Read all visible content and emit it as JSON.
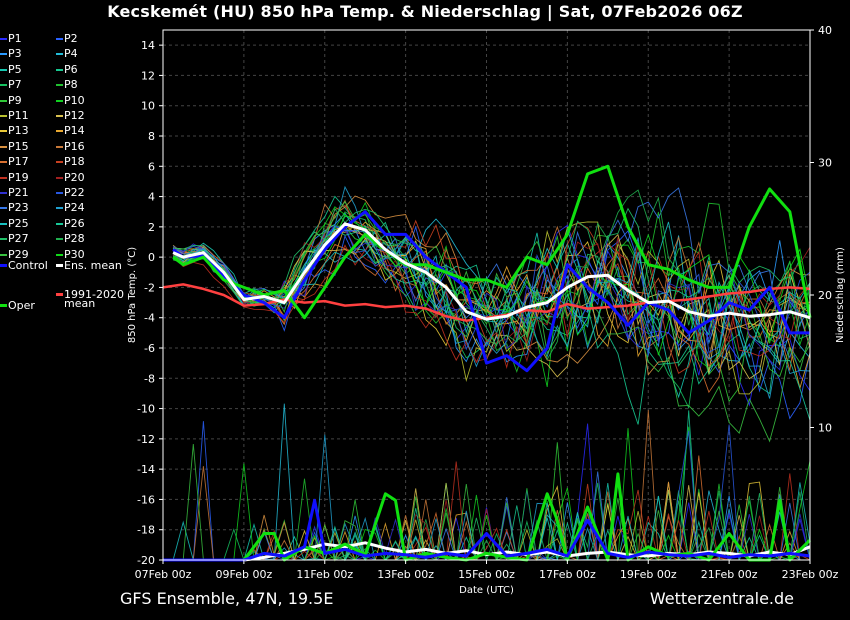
{
  "title": "Kecskemét  (HU)  850 hPa Temp. & Niederschlag | Sat, 07Feb2026 06Z",
  "footer": {
    "left": "GFS Ensemble, 47N, 19.5E",
    "right": "Wetterzentrale.de"
  },
  "legend": {
    "members": [
      "P1",
      "P2",
      "P3",
      "P4",
      "P5",
      "P6",
      "P7",
      "P8",
      "P9",
      "P10",
      "P11",
      "P12",
      "P13",
      "P14",
      "P15",
      "P16",
      "P17",
      "P18",
      "P19",
      "P20",
      "P21",
      "P22",
      "P23",
      "P24",
      "P25",
      "P26",
      "P27",
      "P28",
      "P29",
      "P30"
    ],
    "control": "Control",
    "ens_mean": "Ens. mean",
    "clim_line1": "1991-2020",
    "clim_line2": "mean",
    "oper": "Oper"
  },
  "colors": {
    "control": "#1010ff",
    "ens_mean": "#ffffff",
    "clim": "#ff4040",
    "oper": "#10e010",
    "members": [
      "#2a2aff",
      "#2a62ff",
      "#2a9aff",
      "#22bcd8",
      "#16c8b0",
      "#16c890",
      "#16c060",
      "#20c030",
      "#30c838",
      "#10d020",
      "#b8c030",
      "#d8c050",
      "#e8c838",
      "#e8a830",
      "#d89040",
      "#c87838",
      "#d87030",
      "#c84020",
      "#c03020",
      "#a02020",
      "#3030d0",
      "#2858e0",
      "#3878e8",
      "#20a0d0",
      "#18c0c0",
      "#18c898",
      "#20c068",
      "#20b050",
      "#38c040",
      "#10d818"
    ]
  },
  "axes": {
    "x_label": "Date (UTC)",
    "y_left_label": "850 hPa Temp. (°C)",
    "y_right_label": "Niederschlag (mm)",
    "x_ticks": [
      "07Feb 00z",
      "09Feb 00z",
      "11Feb 00z",
      "13Feb 00z",
      "15Feb 00z",
      "17Feb 00z",
      "19Feb 00z",
      "21Feb 00z",
      "23Feb 00z"
    ],
    "x_range_days": [
      0,
      16
    ],
    "y_left_range": [
      -20,
      15
    ],
    "y_left_ticks": [
      14,
      12,
      10,
      8,
      6,
      4,
      2,
      0,
      -2,
      -4,
      -6,
      -8,
      -10,
      -12,
      -14,
      -16,
      -18,
      -20
    ],
    "y_right_range": [
      0,
      40
    ],
    "y_right_ticks": [
      10,
      20,
      30,
      40
    ],
    "grid": true
  },
  "chart_data": {
    "type": "line",
    "x_unit": "days since 07Feb 00z",
    "series": [
      {
        "name": "Ens. mean",
        "kind": "temp",
        "x": [
          0.25,
          0.5,
          1,
          1.5,
          2,
          2.5,
          3,
          3.5,
          4,
          4.5,
          5,
          5.5,
          6,
          6.5,
          7,
          7.5,
          8,
          8.5,
          9,
          9.5,
          10,
          10.5,
          11,
          11.5,
          12,
          12.5,
          13,
          13.5,
          14,
          14.5,
          15,
          15.5,
          16
        ],
        "y": [
          0.3,
          0,
          0.3,
          -1,
          -2.8,
          -2.6,
          -3,
          -1,
          0.8,
          2.2,
          1.8,
          0.5,
          -0.4,
          -1,
          -2,
          -3.6,
          -4.1,
          -3.9,
          -3.3,
          -3,
          -2,
          -1.3,
          -1.2,
          -2.2,
          -3,
          -2.9,
          -3.6,
          -3.9,
          -3.7,
          -3.9,
          -3.8,
          -3.6,
          -4
        ]
      },
      {
        "name": "Control",
        "kind": "temp",
        "x": [
          0.25,
          0.5,
          1,
          1.5,
          2,
          2.5,
          3,
          3.5,
          4,
          4.5,
          5,
          5.5,
          6,
          6.5,
          7,
          7.5,
          8,
          8.5,
          9,
          9.5,
          10,
          10.5,
          11,
          11.5,
          12,
          12.5,
          13,
          13.5,
          14,
          14.5,
          15,
          15.5,
          16
        ],
        "y": [
          0.5,
          0,
          0.1,
          -1.2,
          -2.5,
          -3,
          -4,
          -1.5,
          0.5,
          2,
          3,
          1.5,
          1.5,
          0,
          -1,
          -2,
          -7,
          -6.5,
          -7.5,
          -6,
          -0.5,
          -2,
          -3,
          -4.5,
          -3,
          -3.5,
          -5,
          -4.2,
          -3,
          -3.5,
          -2,
          -5,
          -5
        ]
      },
      {
        "name": "Oper",
        "kind": "temp",
        "x": [
          0.25,
          0.5,
          1,
          1.5,
          2,
          2.5,
          3,
          3.5,
          4,
          4.5,
          5,
          5.5,
          6,
          6.5,
          7,
          7.5,
          8,
          8.5,
          9,
          9.5,
          10,
          10.5,
          11,
          11.5,
          12,
          12.5,
          13,
          13.5,
          14,
          14.5,
          15,
          15.5,
          16
        ],
        "y": [
          0,
          -0.5,
          0,
          -1.5,
          -2,
          -2.5,
          -2.2,
          -4,
          -2,
          0,
          1.5,
          0.5,
          -0.5,
          -0.5,
          -1,
          -1.5,
          -1.5,
          -2,
          0,
          -0.5,
          1.5,
          5.5,
          6,
          2,
          -0.5,
          -0.8,
          -1.5,
          -2,
          -2,
          2,
          4.5,
          3,
          -4
        ]
      },
      {
        "name": "1991-2020 mean",
        "kind": "temp",
        "x": [
          0,
          0.5,
          1,
          1.5,
          2,
          2.5,
          3,
          3.5,
          4,
          4.5,
          5,
          5.5,
          6,
          6.5,
          7,
          7.5,
          8,
          8.5,
          9,
          9.5,
          10,
          10.5,
          11,
          11.5,
          12,
          12.5,
          13,
          13.5,
          14,
          14.5,
          15,
          15.5,
          16
        ],
        "y": [
          -2,
          -1.8,
          -2.1,
          -2.5,
          -3.2,
          -3.1,
          -2.8,
          -3,
          -2.9,
          -3.2,
          -3.1,
          -3.3,
          -3.2,
          -3.4,
          -3.9,
          -4.2,
          -4.0,
          -3.8,
          -3.5,
          -3.6,
          -3.1,
          -3.4,
          -3.3,
          -3.2,
          -3.0,
          -2.9,
          -2.8,
          -2.6,
          -2.4,
          -2.3,
          -2.1,
          -2.0,
          -2.1
        ]
      },
      {
        "name": "Ens. mean",
        "kind": "precip",
        "x": [
          0,
          1,
          2,
          2.5,
          3,
          3.5,
          4,
          4.5,
          5,
          5.5,
          6,
          6.5,
          7,
          7.5,
          8,
          8.5,
          9,
          9.5,
          10,
          10.5,
          11,
          11.5,
          12,
          12.5,
          13,
          13.5,
          14,
          14.5,
          15,
          15.5,
          16
        ],
        "y": [
          0,
          0,
          0,
          0.2,
          0.5,
          0.8,
          1.2,
          1.0,
          1.3,
          0.9,
          0.6,
          0.8,
          0.5,
          0.7,
          0.4,
          0.6,
          0.4,
          0.6,
          0.3,
          0.5,
          0.6,
          0.4,
          0.3,
          0.5,
          0.4,
          0.6,
          0.5,
          0.3,
          0.6,
          0.4,
          1.0
        ]
      },
      {
        "name": "Oper",
        "kind": "precip",
        "x": [
          0,
          1,
          2,
          2.5,
          2.75,
          3,
          3.5,
          4,
          4.5,
          5,
          5.5,
          5.75,
          6,
          6.5,
          7,
          7.5,
          8,
          8.5,
          9,
          9.5,
          9.75,
          10,
          10.5,
          11,
          11.25,
          11.5,
          12,
          12.5,
          13,
          13.5,
          14,
          14.5,
          15,
          15.25,
          15.5,
          16
        ],
        "y": [
          0,
          0,
          0,
          2,
          2,
          0,
          1,
          0.5,
          1.2,
          0.4,
          5,
          4.5,
          0,
          0.5,
          0.2,
          0,
          0.5,
          0.2,
          0,
          5,
          3,
          0,
          4,
          0,
          6.5,
          0,
          1,
          0.3,
          0.5,
          0,
          2,
          0,
          0,
          4.5,
          0,
          1.5
        ]
      },
      {
        "name": "Control",
        "kind": "precip",
        "x": [
          0,
          1,
          2,
          2.5,
          3,
          3.5,
          3.75,
          4,
          4.5,
          5,
          5.5,
          6,
          6.5,
          7,
          7.5,
          8,
          8.5,
          9,
          9.5,
          10,
          10.5,
          11,
          11.5,
          12,
          12.5,
          13,
          13.5,
          14,
          14.5,
          15,
          15.5,
          16
        ],
        "y": [
          0,
          0,
          0,
          0.5,
          0.3,
          1,
          4.5,
          0.5,
          0.8,
          0.3,
          0.5,
          0.4,
          0.2,
          0.5,
          0.3,
          2,
          0.3,
          0.5,
          0.8,
          0.3,
          3,
          0.5,
          0.2,
          0.6,
          0.4,
          0.3,
          0.5,
          0.2,
          0.4,
          0.3,
          0.5,
          0.3
        ]
      }
    ]
  }
}
